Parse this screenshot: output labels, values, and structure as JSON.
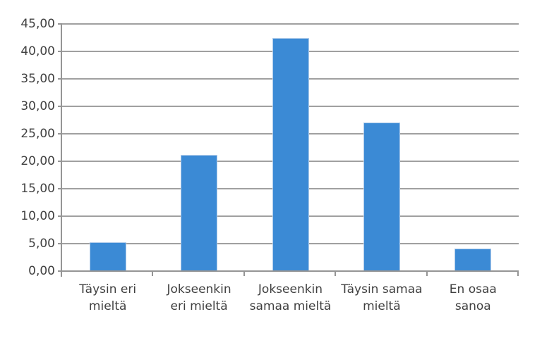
{
  "chart_data": {
    "type": "bar",
    "title": "",
    "xlabel": "",
    "ylabel": "",
    "categories": [
      "Täysin eri mieltä",
      "Jokseenkin eri mieltä",
      "Jokseenkin samaa mieltä",
      "Täysin samaa mieltä",
      "En osaa sanoa"
    ],
    "category_lines": [
      [
        "Täysin eri",
        "mieltä"
      ],
      [
        "Jokseenkin",
        "eri mieltä"
      ],
      [
        "Jokseenkin",
        "samaa mieltä"
      ],
      [
        "Täysin samaa",
        "mieltä"
      ],
      [
        "En osaa",
        "sanoa"
      ]
    ],
    "values": [
      5.3,
      21.1,
      42.5,
      27.1,
      4.1
    ],
    "ylim": [
      0,
      45
    ],
    "ytick_step": 5,
    "ytick_labels": [
      "0,00",
      "5,00",
      "10,00",
      "15,00",
      "20,00",
      "25,00",
      "30,00",
      "35,00",
      "40,00",
      "45,00"
    ],
    "decimal_separator": ",",
    "grid": true,
    "legend": false,
    "colors": {
      "bar": "#3B8AD5",
      "bar_edge": "#AFCBEA",
      "gridline": "#A0A0A0",
      "axis": "#959595",
      "text": "#404040",
      "background": "#FFFFFF"
    }
  }
}
